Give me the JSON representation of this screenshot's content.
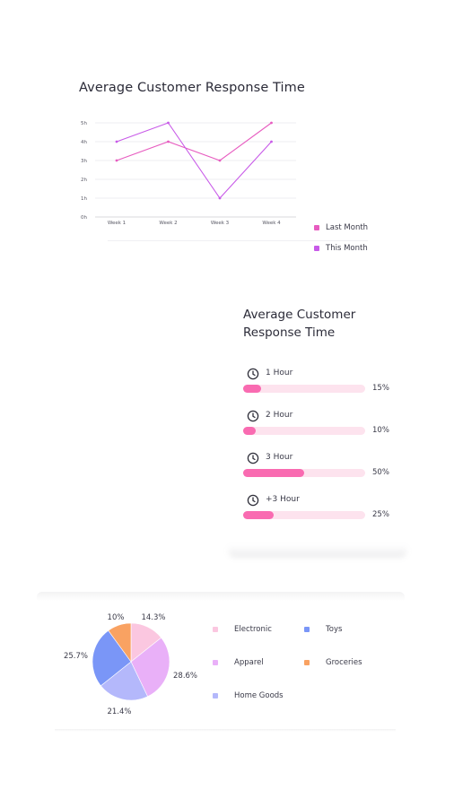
{
  "line_card": {
    "title": "Average Customer Response Time"
  },
  "progress_card": {
    "title": "Average Customer Response Time",
    "rows": [
      {
        "label": "1 Hour",
        "percent_label": "15%",
        "value": 15
      },
      {
        "label": "2 Hour",
        "percent_label": "10%",
        "value": 10
      },
      {
        "label": "3 Hour",
        "percent_label": "50%",
        "value": 50
      },
      {
        "label": "+3 Hour",
        "percent_label": "25%",
        "value": 25
      }
    ],
    "colors": {
      "fill": "#f96bb1",
      "track": "#fde3ee"
    }
  },
  "chart_data": [
    {
      "type": "line",
      "title": "Average Customer Response Time",
      "categories": [
        "Week 1",
        "Week 2",
        "Week 3",
        "Week 4"
      ],
      "y_ticks": [
        "0h",
        "1h",
        "2h",
        "3h",
        "4h",
        "5h"
      ],
      "ylim": [
        0,
        5
      ],
      "grid": true,
      "legend_position": "right",
      "series": [
        {
          "name": "Last Month",
          "values": [
            3,
            4,
            3,
            5
          ],
          "color": "#e75cc0"
        },
        {
          "name": "This Month",
          "values": [
            4,
            5,
            1,
            4
          ],
          "color": "#c85ae8"
        }
      ]
    },
    {
      "type": "pie",
      "legend_position": "right",
      "slices": [
        {
          "name": "Electronic",
          "value": 14.3,
          "label": "14.3%",
          "color": "#fbc7e0"
        },
        {
          "name": "Apparel",
          "value": 28.6,
          "label": "28.6%",
          "color": "#e9b0f8"
        },
        {
          "name": "Home Goods",
          "value": 21.4,
          "label": "21.4%",
          "color": "#b4b8fb"
        },
        {
          "name": "Toys",
          "value": 25.7,
          "label": "25.7%",
          "color": "#7a96f7"
        },
        {
          "name": "Groceries",
          "value": 10,
          "label": "10%",
          "color": "#f9a262"
        }
      ]
    }
  ]
}
